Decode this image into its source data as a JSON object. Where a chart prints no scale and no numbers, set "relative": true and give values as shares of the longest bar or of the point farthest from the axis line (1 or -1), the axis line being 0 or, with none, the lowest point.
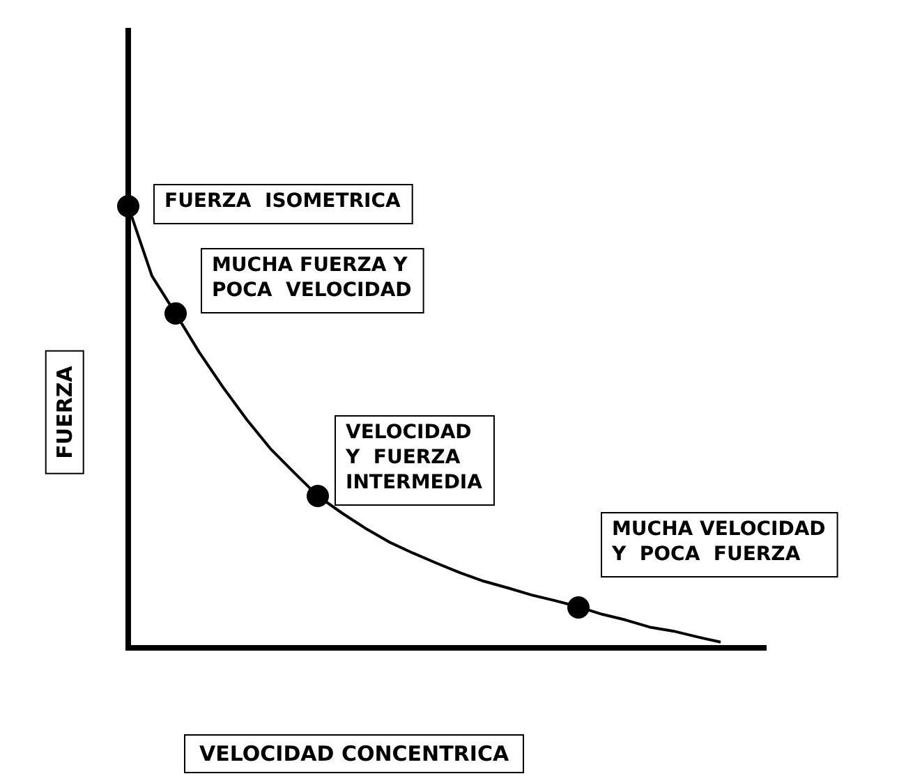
{
  "chart_data": {
    "type": "line",
    "relative": true,
    "xlabel": "VELOCIDAD CONCENTRICA",
    "ylabel": "FUERZA",
    "categories": [
      null,
      null,
      null,
      null,
      null,
      null,
      null,
      null,
      null,
      null,
      null,
      null,
      null,
      null,
      null,
      null,
      null,
      null,
      null,
      null,
      null,
      null,
      null,
      null,
      null,
      null
    ],
    "series": [
      {
        "type": "line",
        "color": "#000000",
        "values": [
          1,
          0.842,
          0.757,
          0.669,
          0.59,
          0.517,
          0.451,
          0.397,
          0.344,
          0.306,
          0.271,
          0.24,
          0.215,
          0.192,
          0.17,
          0.151,
          0.136,
          0.12,
          0.107,
          0.093,
          0.076,
          0.063,
          0.047,
          0.038,
          0.025,
          0.013
        ]
      }
    ],
    "annotations": [
      "FUERZA  ISOMETRICA",
      "MUCHA FUERZA Y\nPOCA  VELOCIDAD",
      "VELOCIDAD\nY  FUERZA\nINTERMEDIA",
      "MUCHA VELOCIDAD\nY  POCA  FUERZA"
    ]
  }
}
